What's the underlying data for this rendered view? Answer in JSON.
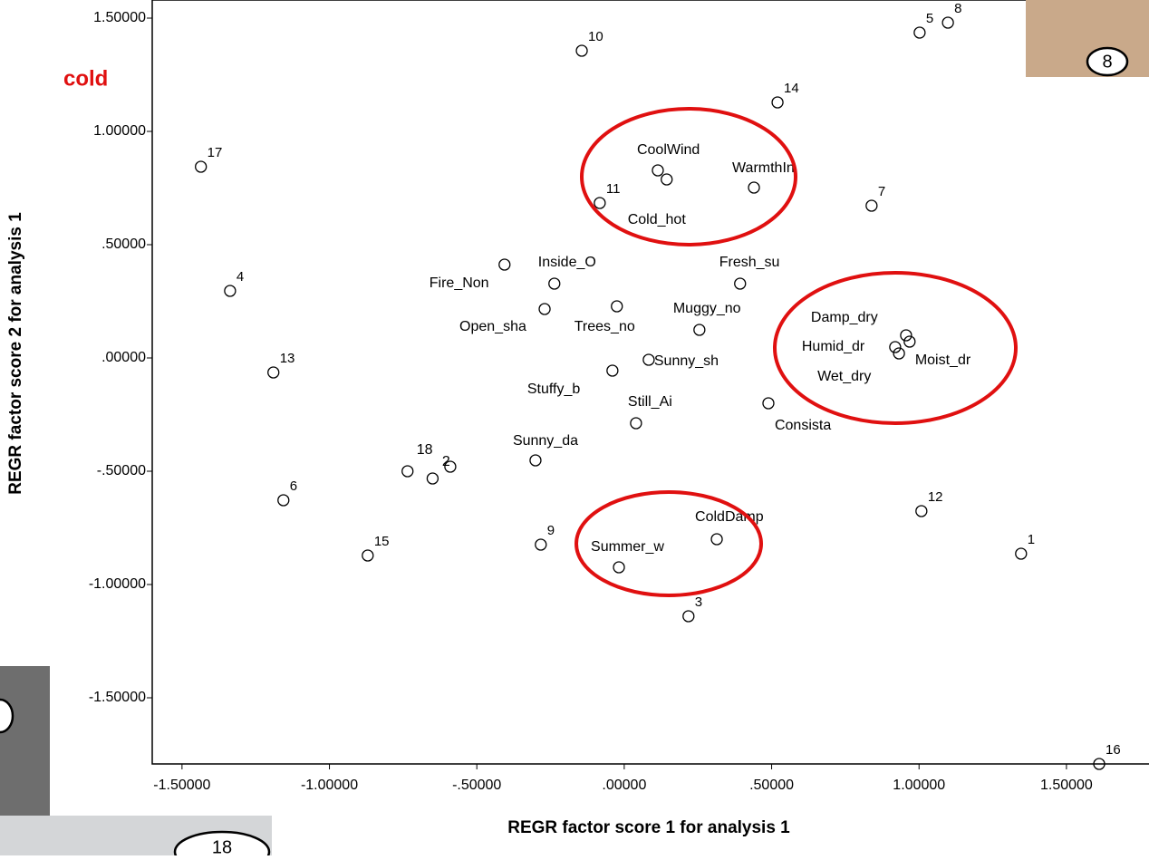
{
  "chart_data": {
    "type": "scatter",
    "xlabel": "REGR factor score   1 for analysis 1",
    "ylabel": "REGR factor score   2 for analysis 1",
    "annotations": [
      "cold",
      "8",
      "18"
    ],
    "xlim": [
      -1.601,
      1.78
    ],
    "ylim": [
      -1.792,
      1.58
    ],
    "xticks": [
      {
        "value": -1.5,
        "label": "-1.50000"
      },
      {
        "value": -1,
        "label": "-1.00000"
      },
      {
        "value": -0.5,
        "label": "-.50000"
      },
      {
        "value": 0,
        "label": ".00000"
      },
      {
        "value": 0.5,
        "label": ".50000"
      },
      {
        "value": 1,
        "label": "1.00000"
      },
      {
        "value": 1.5,
        "label": "1.50000"
      }
    ],
    "yticks": [
      {
        "value": -1.5,
        "label": "-1.50000"
      },
      {
        "value": -1,
        "label": "-1.00000"
      },
      {
        "value": -0.5,
        "label": "-.50000"
      },
      {
        "value": 0,
        "label": ".00000"
      },
      {
        "value": 0.5,
        "label": ".50000"
      },
      {
        "value": 1,
        "label": "1.00000"
      },
      {
        "value": 1.5,
        "label": "1.50000"
      }
    ],
    "series": [
      {
        "point_labels": [
          "10",
          "5",
          "8",
          "14",
          "17",
          "CoolWind",
          "Cold_hot",
          "WarmthIn",
          "11",
          "7",
          "Inside_O",
          "Fire_Non",
          "Fresh_su",
          "4",
          "Open_sha",
          "Trees_no",
          "Muggy_no",
          "Damp_dry",
          "Humid_dr",
          "Moist_dr",
          "Wet_dry",
          "Sunny_sh",
          "13",
          "Stuffy_b",
          "Consista",
          "Still_Ai",
          "Sunny_da",
          "18",
          "2",
          null,
          "6",
          "12",
          "ColdDamp",
          "9",
          "15",
          "Summer_w",
          "1",
          "3",
          "16"
        ],
        "x": [
          -0.144,
          1.002,
          1.098,
          0.52,
          -1.436,
          0.114,
          0.144,
          0.44,
          -0.083,
          0.839,
          -0.406,
          -0.237,
          0.393,
          -1.337,
          -0.27,
          -0.025,
          0.255,
          0.956,
          0.919,
          0.968,
          0.932,
          0.083,
          -1.19,
          -0.04,
          0.489,
          0.04,
          -0.301,
          -0.735,
          -0.59,
          -0.65,
          -1.156,
          1.008,
          0.314,
          -0.283,
          -0.87,
          -0.018,
          1.346,
          0.218,
          1.611
        ],
        "y": [
          1.356,
          1.436,
          1.48,
          1.128,
          0.844,
          0.828,
          0.788,
          0.752,
          0.684,
          0.672,
          0.412,
          0.328,
          0.328,
          0.296,
          0.216,
          0.228,
          0.124,
          0.1,
          0.048,
          0.072,
          0.02,
          -0.008,
          -0.064,
          -0.056,
          -0.2,
          -0.288,
          -0.452,
          -0.5,
          -0.48,
          -0.532,
          -0.628,
          -0.676,
          -0.8,
          -0.824,
          -0.872,
          -0.924,
          -0.864,
          -1.14,
          -1.792
        ]
      }
    ]
  }
}
